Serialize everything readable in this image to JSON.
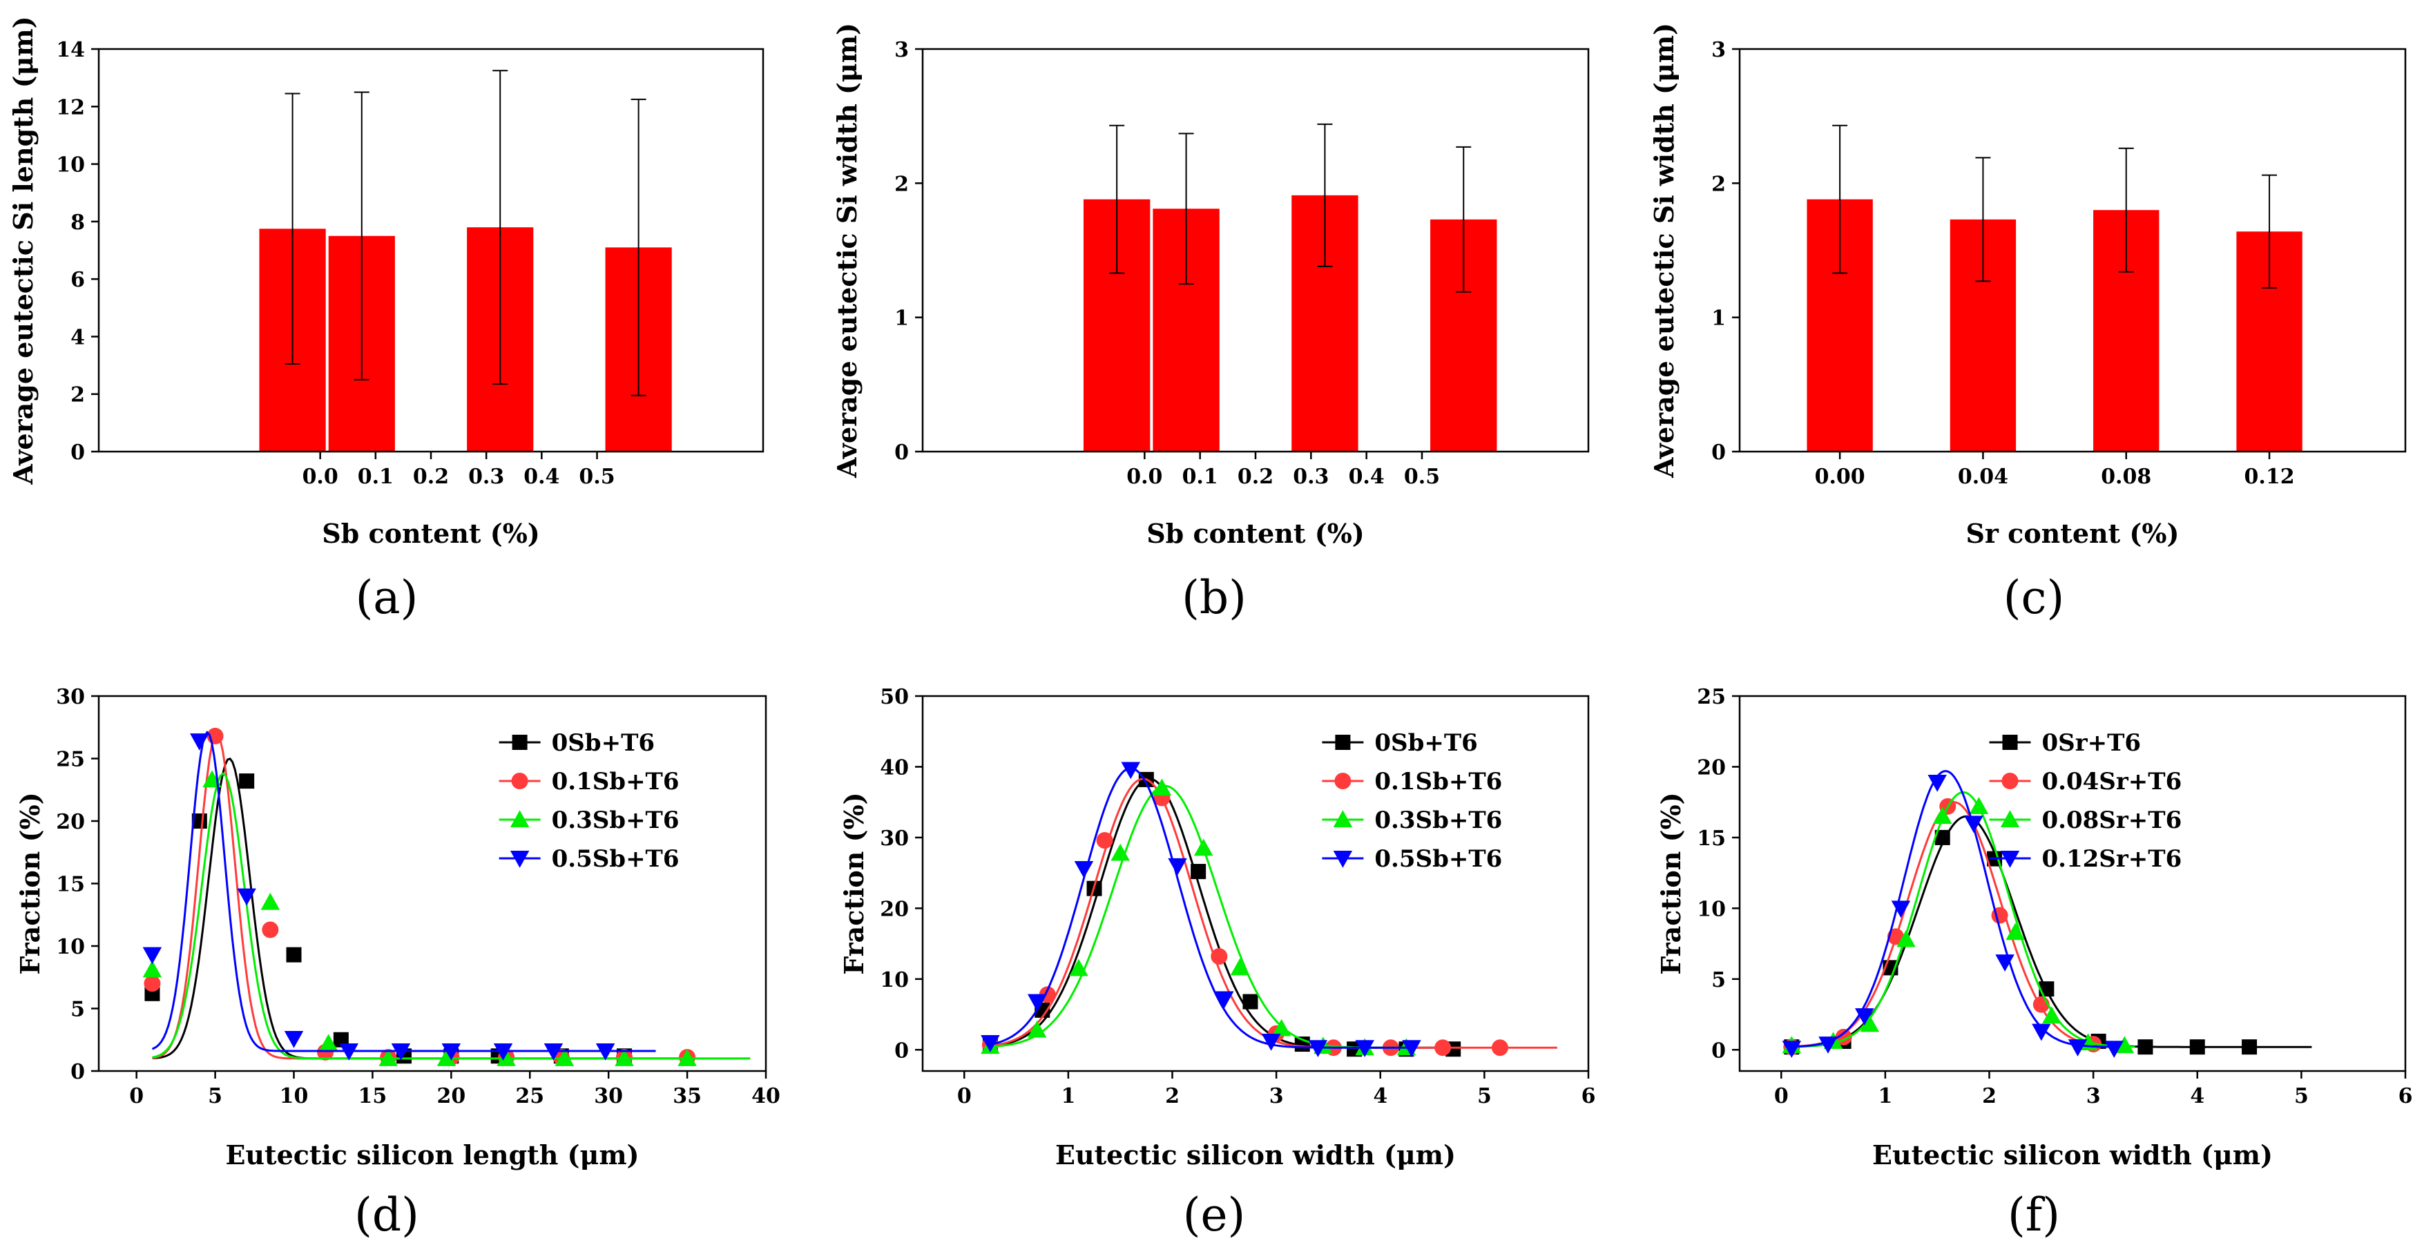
{
  "chart_data": [
    {
      "id": "a",
      "type": "bar",
      "panel_label": "(a)",
      "xlabel": "Sb content (%)",
      "ylabel": "Average eutectic Si length (μm)",
      "xlim": [
        -0.4,
        0.8
      ],
      "ylim": [
        0,
        14
      ],
      "xticks": [
        0.0,
        0.1,
        0.2,
        0.3,
        0.4,
        0.5
      ],
      "xtick_labels": [
        "0.0",
        "0.1",
        "0.2",
        "0.3",
        "0.4",
        "0.5"
      ],
      "yticks": [
        0,
        2,
        4,
        6,
        8,
        10,
        12,
        14
      ],
      "bar_color": "#ff0000",
      "bar_width": 0.12,
      "bars": [
        {
          "x": -0.05,
          "value": 7.75,
          "error": 4.7
        },
        {
          "x": 0.075,
          "value": 7.5,
          "error": 5.0
        },
        {
          "x": 0.325,
          "value": 7.8,
          "error": 5.45
        },
        {
          "x": 0.575,
          "value": 7.1,
          "error": 5.15
        }
      ]
    },
    {
      "id": "b",
      "type": "bar",
      "panel_label": "(b)",
      "xlabel": "Sb content (%)",
      "ylabel": "Average eutectic Si width (μm)",
      "xlim": [
        -0.4,
        0.8
      ],
      "ylim": [
        0,
        3
      ],
      "xticks": [
        0.0,
        0.1,
        0.2,
        0.3,
        0.4,
        0.5
      ],
      "xtick_labels": [
        "0.0",
        "0.1",
        "0.2",
        "0.3",
        "0.4",
        "0.5"
      ],
      "yticks": [
        0,
        1,
        2,
        3
      ],
      "bar_color": "#ff0000",
      "bar_width": 0.12,
      "bars": [
        {
          "x": -0.05,
          "value": 1.88,
          "error": 0.55
        },
        {
          "x": 0.075,
          "value": 1.81,
          "error": 0.56
        },
        {
          "x": 0.325,
          "value": 1.91,
          "error": 0.53
        },
        {
          "x": 0.575,
          "value": 1.73,
          "error": 0.54
        }
      ]
    },
    {
      "id": "c",
      "type": "bar",
      "panel_label": "(c)",
      "xlabel": "Sr content (%)",
      "ylabel": "Average eutectic Si width (μm)",
      "xlim": [
        -0.4,
        4.25
      ],
      "ylim": [
        0,
        3
      ],
      "xticks": [
        0.3,
        1.3,
        2.3,
        3.3
      ],
      "xtick_labels": [
        "0.00",
        "0.04",
        "0.08",
        "0.12"
      ],
      "yticks": [
        0,
        1,
        2,
        3
      ],
      "bar_color": "#ff0000",
      "bar_width": 0.46,
      "bars": [
        {
          "x": 0.3,
          "value": 1.88,
          "error": 0.55
        },
        {
          "x": 1.3,
          "value": 1.73,
          "error": 0.46
        },
        {
          "x": 2.3,
          "value": 1.8,
          "error": 0.46
        },
        {
          "x": 3.3,
          "value": 1.64,
          "error": 0.42
        }
      ]
    },
    {
      "id": "d",
      "type": "line",
      "panel_label": "(d)",
      "xlabel": "Eutectic silicon length (μm)",
      "ylabel": "Fraction (%)",
      "xlim": [
        -2.4,
        40
      ],
      "ylim": [
        0,
        30
      ],
      "xticks": [
        0,
        5,
        10,
        15,
        20,
        25,
        30,
        35,
        40
      ],
      "yticks": [
        0,
        5,
        10,
        15,
        20,
        25,
        30
      ],
      "legend_position": "top-right",
      "series": [
        {
          "name": "0Sb+T6",
          "color": "#000000",
          "marker": "square",
          "fit": {
            "y0": 1.0,
            "A": 24,
            "xc": 5.9,
            "w": 2.6
          },
          "fit_range": [
            1,
            35
          ],
          "x": [
            1,
            4,
            7,
            10,
            13,
            17,
            20,
            23,
            27,
            31
          ],
          "y": [
            6.2,
            20.0,
            23.2,
            9.3,
            2.5,
            1.2,
            1.2,
            1.2,
            1.2,
            1.2
          ]
        },
        {
          "name": "0.1Sb+T6",
          "color": "#ff3b3b",
          "marker": "circle",
          "fit": {
            "y0": 1.0,
            "A": 26,
            "xc": 5.1,
            "w": 2.3
          },
          "fit_range": [
            1,
            39
          ],
          "x": [
            1,
            5,
            8.5,
            12,
            16,
            20,
            23.5,
            27,
            31,
            35
          ],
          "y": [
            7.0,
            26.8,
            11.3,
            1.5,
            1.1,
            1.1,
            1.1,
            1.1,
            1.1,
            1.1
          ]
        },
        {
          "name": "0.3Sb+T6",
          "color": "#00ee00",
          "marker": "triangle-up",
          "fit": {
            "y0": 1.0,
            "A": 22.8,
            "xc": 5.5,
            "w": 2.7
          },
          "fit_range": [
            1,
            39
          ],
          "x": [
            1,
            4.8,
            8.5,
            12.2,
            16,
            19.7,
            23.5,
            27.2,
            31,
            35
          ],
          "y": [
            8.1,
            23.3,
            13.5,
            2.2,
            1.0,
            1.0,
            1.0,
            1.0,
            1.0,
            1.0
          ]
        },
        {
          "name": "0.5Sb+T6",
          "color": "#0000ff",
          "marker": "triangle-down",
          "fit": {
            "y0": 1.6,
            "A": 25.5,
            "xc": 4.5,
            "w": 2.2
          },
          "fit_range": [
            1,
            33
          ],
          "x": [
            1,
            4,
            7,
            10,
            13.5,
            16.8,
            20,
            23.3,
            26.5,
            29.8
          ],
          "y": [
            9.3,
            26.4,
            14.0,
            2.6,
            1.6,
            1.6,
            1.6,
            1.6,
            1.6,
            1.6
          ]
        }
      ]
    },
    {
      "id": "e",
      "type": "line",
      "panel_label": "(e)",
      "xlabel": "Eutectic silicon width (μm)",
      "ylabel": "Fraction (%)",
      "xlim": [
        -0.4,
        6
      ],
      "ylim": [
        -3,
        50
      ],
      "xticks": [
        0,
        1,
        2,
        3,
        4,
        5,
        6
      ],
      "yticks": [
        0,
        10,
        20,
        30,
        40,
        50
      ],
      "legend_position": "top-right",
      "series": [
        {
          "name": "0Sb+T6",
          "color": "#000000",
          "marker": "square",
          "fit": {
            "y0": 0.3,
            "A": 38,
            "xc": 1.78,
            "w": 0.95
          },
          "fit_range": [
            0.25,
            4.7
          ],
          "x": [
            0.25,
            0.75,
            1.25,
            1.75,
            2.25,
            2.75,
            3.25,
            3.75,
            4.25,
            4.7
          ],
          "y": [
            0.8,
            5.6,
            22.8,
            38.2,
            25.2,
            6.8,
            0.8,
            0.1,
            0.1,
            0.1
          ]
        },
        {
          "name": "0.1Sb+T6",
          "color": "#ff3b3b",
          "marker": "circle",
          "fit": {
            "y0": 0.3,
            "A": 38,
            "xc": 1.72,
            "w": 0.93
          },
          "fit_range": [
            0.25,
            5.7
          ],
          "x": [
            0.25,
            0.8,
            1.35,
            1.9,
            2.45,
            3.0,
            3.55,
            4.1,
            4.6,
            5.15
          ],
          "y": [
            0.7,
            7.8,
            29.6,
            35.6,
            13.2,
            2.3,
            0.3,
            0.3,
            0.3,
            0.3
          ]
        },
        {
          "name": "0.3Sb+T6",
          "color": "#00ee00",
          "marker": "triangle-up",
          "fit": {
            "y0": 0.3,
            "A": 37,
            "xc": 1.93,
            "w": 1.0
          },
          "fit_range": [
            0.25,
            4.3
          ],
          "x": [
            0.25,
            0.7,
            1.1,
            1.5,
            1.9,
            2.3,
            2.65,
            3.05,
            3.45,
            3.85,
            4.25
          ],
          "y": [
            0.5,
            2.8,
            11.5,
            27.8,
            37.0,
            28.5,
            11.6,
            3.0,
            0.5,
            0.3,
            0.3
          ]
        },
        {
          "name": "0.5Sb+T6",
          "color": "#0000ff",
          "marker": "triangle-down",
          "fit": {
            "y0": 0.3,
            "A": 39.5,
            "xc": 1.6,
            "w": 0.9
          },
          "fit_range": [
            0.25,
            4.3
          ],
          "x": [
            0.25,
            0.7,
            1.15,
            1.6,
            2.05,
            2.5,
            2.95,
            3.4,
            3.85,
            4.3
          ],
          "y": [
            1.0,
            6.8,
            25.6,
            39.6,
            26.0,
            7.2,
            1.2,
            0.3,
            0.3,
            0.3
          ]
        }
      ]
    },
    {
      "id": "f",
      "type": "line",
      "panel_label": "(f)",
      "xlabel": "Eutectic silicon width (μm)",
      "ylabel": "Fraction (%)",
      "xlim": [
        -0.4,
        6
      ],
      "ylim": [
        -1.5,
        25
      ],
      "xticks": [
        0,
        1,
        2,
        3,
        4,
        5,
        6
      ],
      "yticks": [
        0,
        5,
        10,
        15,
        20,
        25
      ],
      "legend_position": "top-left",
      "series": [
        {
          "name": "0Sr+T6",
          "color": "#000000",
          "marker": "square",
          "fit": {
            "y0": 0.2,
            "A": 16.3,
            "xc": 1.78,
            "w": 0.92
          },
          "fit_range": [
            0.1,
            5.1
          ],
          "x": [
            0.1,
            0.6,
            1.05,
            1.55,
            2.05,
            2.55,
            3.05,
            3.5,
            4.0,
            4.5
          ],
          "y": [
            0.2,
            0.6,
            5.8,
            15.0,
            13.5,
            4.3,
            0.6,
            0.2,
            0.2,
            0.2
          ]
        },
        {
          "name": "0.04Sr+T6",
          "color": "#ff3b3b",
          "marker": "circle",
          "fit": {
            "y0": 0.2,
            "A": 17.3,
            "xc": 1.66,
            "w": 0.88
          },
          "fit_range": [
            0.1,
            3.2
          ],
          "x": [
            0.1,
            0.6,
            1.1,
            1.6,
            2.1,
            2.5,
            3.0
          ],
          "y": [
            0.2,
            0.9,
            8.0,
            17.2,
            9.5,
            3.2,
            0.4
          ]
        },
        {
          "name": "0.08Sr+T6",
          "color": "#00ee00",
          "marker": "triangle-up",
          "fit": {
            "y0": 0.2,
            "A": 18.0,
            "xc": 1.75,
            "w": 0.86
          },
          "fit_range": [
            0.1,
            3.4
          ],
          "x": [
            0.1,
            0.5,
            0.85,
            1.2,
            1.55,
            1.9,
            2.25,
            2.6,
            2.95,
            3.3
          ],
          "y": [
            0.3,
            0.6,
            1.8,
            7.8,
            16.5,
            17.2,
            8.3,
            2.4,
            0.5,
            0.3
          ]
        },
        {
          "name": "0.12Sr+T6",
          "color": "#0000ff",
          "marker": "triangle-down",
          "fit": {
            "y0": 0.2,
            "A": 19.5,
            "xc": 1.58,
            "w": 0.8
          },
          "fit_range": [
            0.1,
            3.2
          ],
          "x": [
            0.1,
            0.45,
            0.8,
            1.15,
            1.5,
            1.85,
            2.15,
            2.5,
            2.85,
            3.2
          ],
          "y": [
            0.1,
            0.4,
            2.4,
            10.0,
            18.9,
            16.0,
            6.2,
            1.3,
            0.2,
            0.1
          ]
        }
      ]
    }
  ]
}
